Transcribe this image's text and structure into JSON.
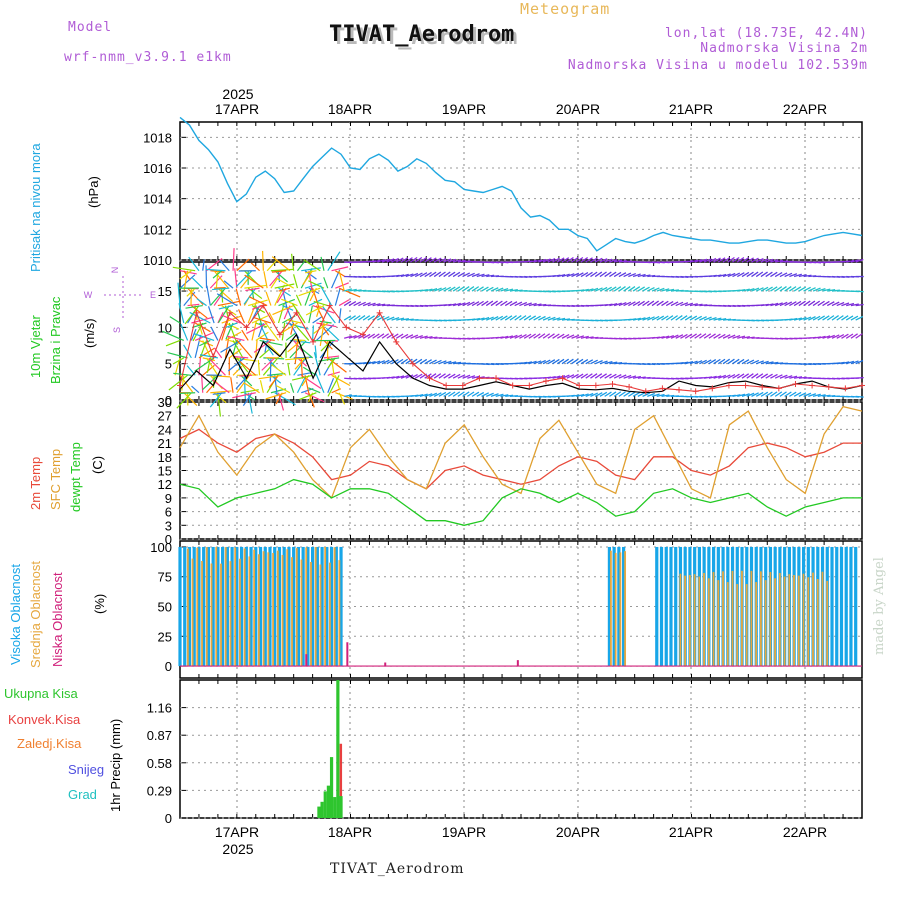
{
  "header": {
    "model_label": "Model",
    "model_name": "wrf-nmm_v3.9.1 e1km",
    "title": "TIVAT_Aerodrom",
    "meteogram": "Meteogram",
    "lonlat": "lon,lat (18.73E, 42.4N)",
    "altitude": "Nadmorska Visina 2m",
    "model_altitude": "Nadmorska Visina u modelu 102.539m"
  },
  "axis_dates": {
    "year": "2025",
    "days": [
      "17APR",
      "18APR",
      "19APR",
      "20APR",
      "21APR",
      "22APR"
    ]
  },
  "panel_labels": {
    "pressure": "Pritisak na nivou mora",
    "pressure_unit": "(hPa)",
    "wind_a": "10m Vjetar",
    "wind_b": "Brzina i Pravac",
    "wind_unit": "(m/s)",
    "wind_rose": {
      "n": "N",
      "w": "W",
      "e": "E",
      "s": "S"
    },
    "temp_a": "2m Temp",
    "temp_b": "SFC Temp",
    "temp_c": "dewpt Temp",
    "temp_unit": "(C)",
    "cloud_a": "Visoka Oblacnost",
    "cloud_b": "Srednja Oblacnost",
    "cloud_c": "Niska Oblacnost",
    "cloud_unit": "(%)",
    "precip_label": "1hr Precip (mm)",
    "precip_legend": [
      "Ukupna Kisa",
      "Konvek.Kisa",
      "Zaledj.Kisa",
      "Snijeg",
      "Grad"
    ]
  },
  "footer": {
    "station": "TIVAT_Aerodrom",
    "made_by": "made by Angel"
  },
  "colors": {
    "pressure": "#1fa7e0",
    "wind_speed": "#000000",
    "wind_gust": "#e83a3a",
    "t2m": "#e84a3a",
    "tsfc": "#e0a030",
    "dewpt": "#22c922",
    "cloud_high": "#18a6e8",
    "cloud_mid": "#e6a840",
    "cloud_low": "#d0207a",
    "precip_total": "#2ec52e",
    "precip_conv": "#e84040",
    "precip_frz": "#f08030",
    "precip_snow": "#5050e0",
    "precip_grad": "#20c0c0"
  },
  "chart_data": [
    {
      "type": "line",
      "name": "pressure",
      "x_unit": "hours from 16APR 12UTC",
      "ylim": [
        1010,
        1019
      ],
      "yticks": [
        1010,
        1012,
        1014,
        1016,
        1018
      ],
      "x": [
        0,
        3,
        6,
        9,
        12,
        15,
        18,
        21,
        24,
        27,
        30,
        33,
        36,
        39,
        42,
        45,
        48,
        51,
        54,
        57,
        60,
        63,
        66,
        69,
        72,
        75,
        78,
        81,
        84,
        87,
        90,
        93,
        96,
        99,
        102,
        105,
        108,
        111,
        114,
        117,
        120,
        123,
        126,
        129,
        132,
        135,
        138,
        141,
        144,
        147,
        150,
        153,
        156,
        159,
        162,
        165,
        168,
        171,
        174,
        177,
        180,
        183,
        186,
        189,
        192,
        195,
        198,
        201,
        204,
        207,
        210,
        213,
        216
      ],
      "values": [
        1019.3,
        1018.8,
        1017.8,
        1017.2,
        1016.4,
        1015.0,
        1013.8,
        1014.3,
        1015.4,
        1015.8,
        1015.3,
        1014.4,
        1014.5,
        1015.3,
        1016.1,
        1016.7,
        1017.3,
        1016.9,
        1016.0,
        1015.9,
        1016.6,
        1016.9,
        1016.5,
        1015.8,
        1016.1,
        1016.6,
        1016.3,
        1015.7,
        1015.2,
        1015.1,
        1014.6,
        1014.5,
        1014.4,
        1014.6,
        1014.8,
        1014.5,
        1013.4,
        1012.8,
        1012.9,
        1012.6,
        1012.0,
        1012.0,
        1011.6,
        1011.4,
        1010.6,
        1011.0,
        1011.4,
        1011.2,
        1011.1,
        1011.3,
        1011.6,
        1011.8,
        1011.6,
        1011.5,
        1011.4,
        1011.3,
        1011.3,
        1011.2,
        1011.1,
        1011.1,
        1011.2,
        1011.3,
        1011.3,
        1011.2,
        1011.1,
        1011.1,
        1011.2,
        1011.4,
        1011.6,
        1011.7,
        1011.8,
        1011.7,
        1011.6
      ]
    },
    {
      "type": "line",
      "name": "wind",
      "ylim": [
        0,
        19
      ],
      "yticks": [
        0,
        5,
        10,
        15
      ],
      "barb_rows": [
        0.5,
        3,
        5,
        8.5,
        11,
        13,
        15,
        17,
        19
      ],
      "speed": [
        1.5,
        4,
        2,
        7,
        3,
        8,
        6,
        9,
        3,
        8,
        6,
        4,
        8,
        5,
        3,
        2,
        1.5,
        1.5,
        2,
        2.5,
        2,
        1.5,
        2,
        2.3,
        1.5,
        1.4,
        1.6,
        1.2,
        1.0,
        1.2,
        2.6,
        2.0,
        1.8,
        2.4,
        2.6,
        2.0,
        1.6,
        2.2,
        2.6,
        1.8,
        1.5,
        2.0
      ],
      "gust": [
        2,
        12,
        6,
        12,
        10,
        13,
        9,
        12,
        8,
        13,
        10,
        9,
        12,
        8,
        5,
        3,
        2,
        2,
        3,
        3,
        2,
        2,
        2.6,
        3,
        2,
        2,
        2.2,
        1.8,
        1.2,
        1.6,
        1.4,
        1.2,
        1.6,
        2.0,
        2.0,
        1.8,
        1.6,
        2.2,
        2.0,
        1.8,
        1.6,
        2.0
      ]
    },
    {
      "type": "line",
      "name": "temperature",
      "ylim": [
        0,
        30
      ],
      "yticks": [
        0,
        3,
        6,
        9,
        12,
        15,
        18,
        21,
        24,
        27,
        30
      ],
      "x": [
        0,
        6,
        12,
        18,
        24,
        30,
        36,
        42,
        48,
        54,
        60,
        66,
        72,
        78,
        84,
        90,
        96,
        102,
        108,
        114,
        120,
        126,
        132,
        138,
        144,
        150,
        156,
        162,
        168,
        174,
        180,
        186,
        192,
        198,
        204,
        210,
        216
      ],
      "t2m": [
        22,
        24,
        21,
        19,
        22,
        23,
        21,
        18,
        13,
        14,
        17,
        16,
        13,
        11,
        15,
        16,
        14,
        13,
        12,
        13,
        16,
        18,
        17,
        14,
        13,
        18,
        18,
        15,
        14,
        16,
        20,
        21,
        20,
        18,
        19,
        21,
        21
      ],
      "tsfc": [
        20,
        27,
        19,
        14,
        20,
        23,
        19,
        13,
        9,
        20,
        24,
        18,
        13,
        11,
        21,
        25,
        18,
        12,
        10,
        22,
        26,
        19,
        12,
        10,
        24,
        27,
        19,
        11,
        9,
        25,
        28,
        20,
        13,
        10,
        23,
        29,
        28
      ],
      "dewpt": [
        12,
        11,
        7,
        9,
        10,
        11,
        13,
        12,
        9,
        11,
        11,
        10,
        7,
        4,
        4,
        3,
        4,
        9,
        11,
        10,
        8,
        10,
        8,
        5,
        6,
        10,
        11,
        9,
        8,
        9,
        10,
        7,
        5,
        7,
        8,
        9,
        9
      ]
    },
    {
      "type": "bar",
      "name": "cloudiness",
      "ylim": [
        0,
        100
      ],
      "yticks": [
        0,
        25,
        50,
        75,
        100
      ],
      "high_ranges": [
        [
          0,
          52,
          100
        ],
        [
          136,
          141,
          100
        ],
        [
          151,
          214,
          100
        ]
      ],
      "mid_ranges": [
        [
          2,
          51,
          100
        ],
        [
          136,
          141,
          100
        ],
        [
          158,
          205,
          80
        ]
      ],
      "low_points": [
        [
          40,
          10
        ],
        [
          53,
          20
        ],
        [
          65,
          3
        ],
        [
          107,
          5
        ]
      ]
    },
    {
      "type": "bar",
      "name": "precipitation",
      "ylim": [
        0,
        1.45
      ],
      "yticks": [
        0,
        0.29,
        0.58,
        0.87,
        1.16
      ],
      "x": [
        44,
        45,
        46,
        47,
        48,
        49,
        50,
        51
      ],
      "total": [
        0.12,
        0.17,
        0.28,
        0.34,
        0.64,
        0.22,
        1.45,
        0.23
      ],
      "conv": [
        0,
        0,
        0,
        0,
        0,
        0,
        0.78,
        0
      ]
    }
  ]
}
